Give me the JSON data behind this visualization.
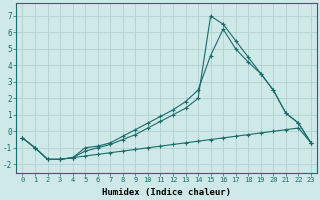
{
  "xlabel": "Humidex (Indice chaleur)",
  "background_color": "#cfe9e9",
  "grid_color": "#b0d0d0",
  "line_color": "#1a6b6b",
  "xlim": [
    -0.5,
    23.5
  ],
  "ylim": [
    -2.5,
    7.8
  ],
  "xticks": [
    0,
    1,
    2,
    3,
    4,
    5,
    6,
    7,
    8,
    9,
    10,
    11,
    12,
    13,
    14,
    15,
    16,
    17,
    18,
    19,
    20,
    21,
    22,
    23
  ],
  "yticks": [
    -2,
    -1,
    0,
    1,
    2,
    3,
    4,
    5,
    6,
    7
  ],
  "line1_x": [
    0,
    1,
    2,
    3,
    4,
    5,
    6,
    7,
    8,
    9,
    10,
    11,
    12,
    13,
    14,
    15,
    16,
    17,
    18,
    19,
    20,
    21,
    22,
    23
  ],
  "line1_y": [
    -0.4,
    -1.0,
    -1.7,
    -1.7,
    -1.6,
    -1.5,
    -1.4,
    -1.3,
    -1.2,
    -1.1,
    -1.0,
    -0.9,
    -0.8,
    -0.7,
    -0.6,
    -0.5,
    -0.4,
    -0.3,
    -0.2,
    -0.1,
    0.0,
    0.1,
    0.2,
    -0.7
  ],
  "line2_x": [
    0,
    1,
    2,
    3,
    4,
    5,
    6,
    7,
    8,
    9,
    10,
    11,
    12,
    13,
    14,
    15,
    16,
    17,
    18,
    19,
    20,
    21,
    22,
    23
  ],
  "line2_y": [
    -0.4,
    -1.0,
    -1.7,
    -1.7,
    -1.6,
    -1.0,
    -0.9,
    -0.7,
    -0.3,
    0.1,
    0.5,
    0.9,
    1.3,
    1.8,
    2.5,
    4.6,
    6.2,
    5.0,
    4.2,
    3.5,
    2.5,
    1.1,
    0.5,
    -0.7
  ],
  "line3_x": [
    0,
    1,
    2,
    3,
    4,
    5,
    6,
    7,
    8,
    9,
    10,
    11,
    12,
    13,
    14,
    15,
    16,
    17,
    18,
    19,
    20,
    21,
    22,
    23
  ],
  "line3_y": [
    -0.4,
    -1.0,
    -1.7,
    -1.7,
    -1.6,
    -1.2,
    -1.0,
    -0.8,
    -0.5,
    -0.2,
    0.2,
    0.6,
    1.0,
    1.4,
    2.0,
    7.0,
    6.5,
    5.5,
    4.5,
    3.5,
    2.5,
    1.1,
    0.5,
    -0.7
  ]
}
